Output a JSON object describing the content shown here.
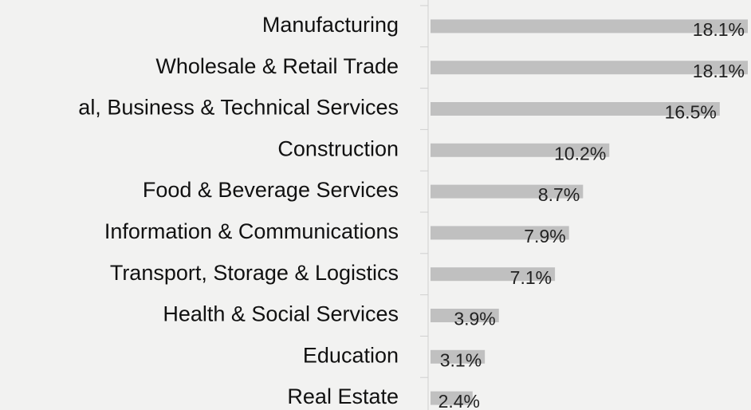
{
  "chart_data": {
    "type": "bar",
    "orientation": "horizontal",
    "categories": [
      "Manufacturing",
      "Wholesale & Retail Trade",
      "al, Business & Technical Services",
      "Construction",
      "Food & Beverage Services",
      "Information & Communications",
      "Transport, Storage & Logistics",
      "Health & Social Services",
      "Education",
      "Real Estate"
    ],
    "values": [
      18.1,
      18.1,
      16.5,
      10.2,
      8.7,
      7.9,
      7.1,
      3.9,
      3.1,
      2.4
    ],
    "value_labels": [
      "18.1%",
      "18.1%",
      "16.5%",
      "10.2%",
      "8.7%",
      "7.9%",
      "7.1%",
      "3.9%",
      "3.1%",
      "2.4%"
    ],
    "color": "#c0c0c0"
  }
}
